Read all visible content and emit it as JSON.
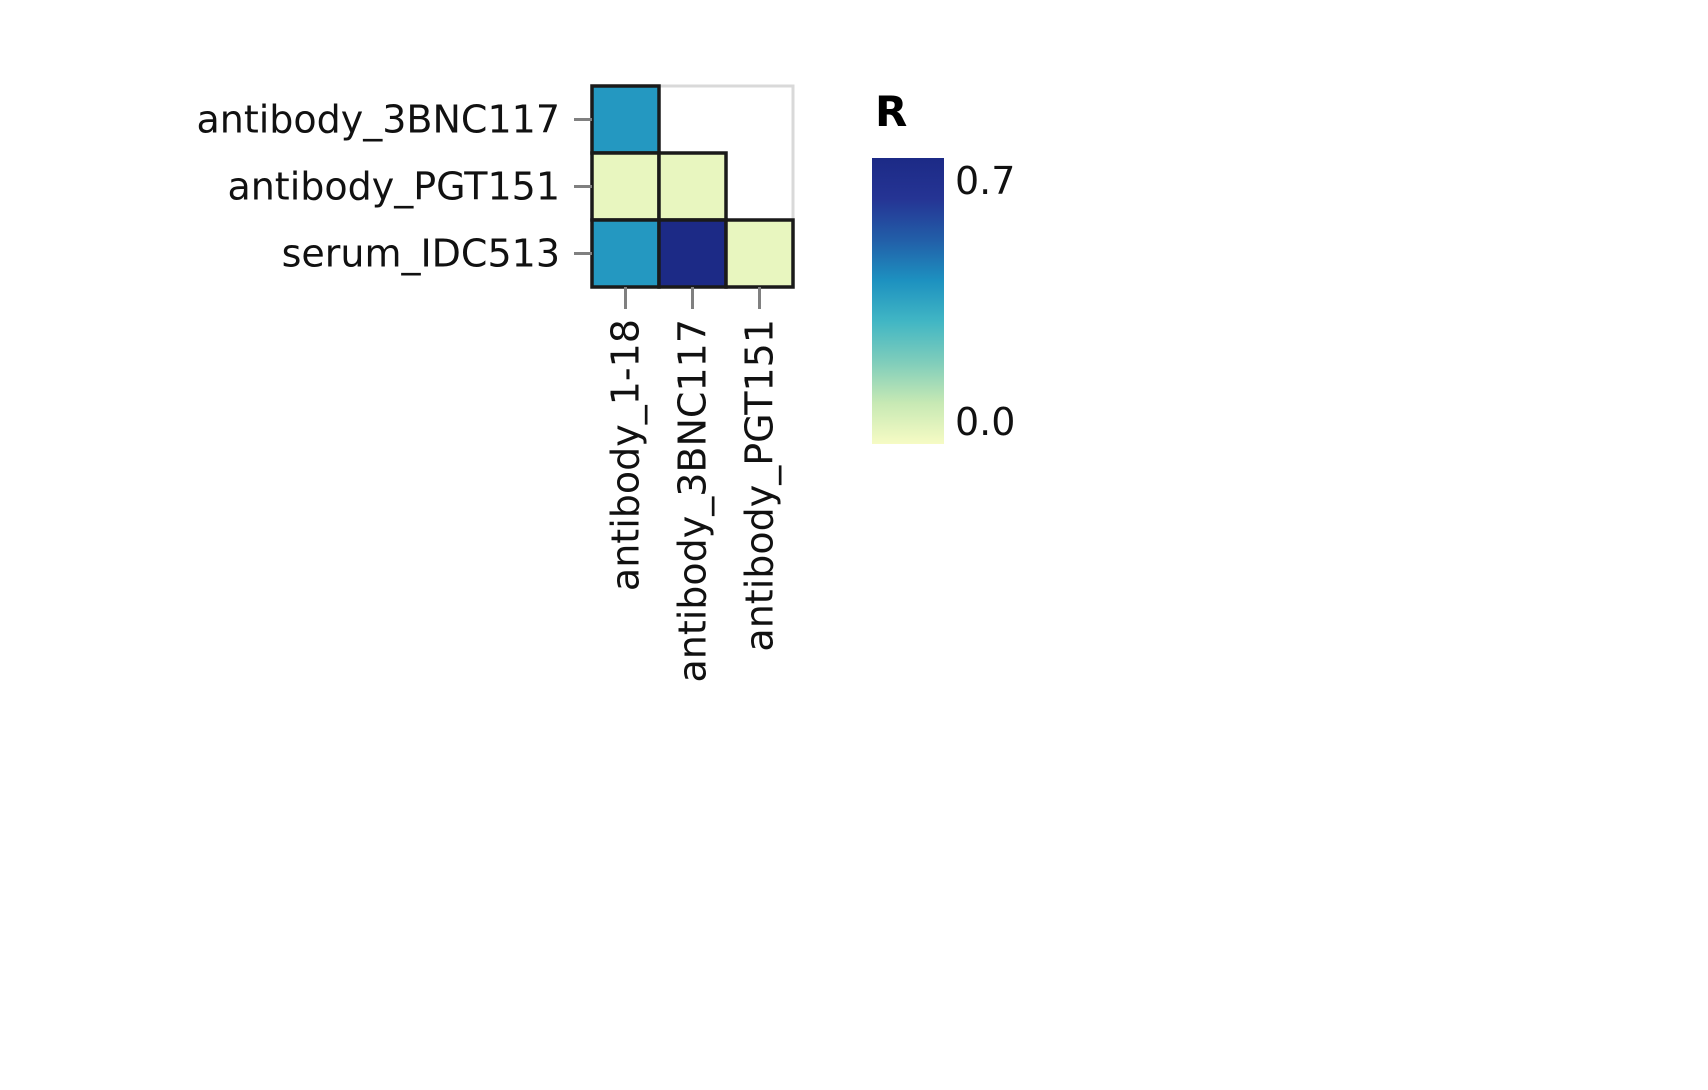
{
  "chart_data": {
    "type": "heatmap",
    "x_categories": [
      "antibody_1-18",
      "antibody_3BNC117",
      "antibody_PGT151"
    ],
    "y_categories": [
      "antibody_3BNC117",
      "antibody_PGT151",
      "serum_IDC513"
    ],
    "cells": [
      {
        "x": "antibody_1-18",
        "y": "antibody_3BNC117",
        "value": 0.38
      },
      {
        "x": "antibody_1-18",
        "y": "antibody_PGT151",
        "value": 0.03
      },
      {
        "x": "antibody_3BNC117",
        "y": "antibody_PGT151",
        "value": 0.03
      },
      {
        "x": "antibody_1-18",
        "y": "serum_IDC513",
        "value": 0.38
      },
      {
        "x": "antibody_3BNC117",
        "y": "serum_IDC513",
        "value": 0.7
      },
      {
        "x": "antibody_PGT151",
        "y": "serum_IDC513",
        "value": 0.03
      }
    ],
    "color_scale": {
      "title": "R",
      "min": 0.0,
      "max": 0.7,
      "min_label": "0.0",
      "max_label": "0.7",
      "colors": [
        "#f6fbc4",
        "#c7e9b4",
        "#7fcdbb",
        "#41b6c4",
        "#1d91c0",
        "#225ea8",
        "#253494",
        "#1c2a86"
      ]
    },
    "empty_cell_border_color": "#d9d9d9",
    "cell_border_color": "#1a1a1a"
  }
}
